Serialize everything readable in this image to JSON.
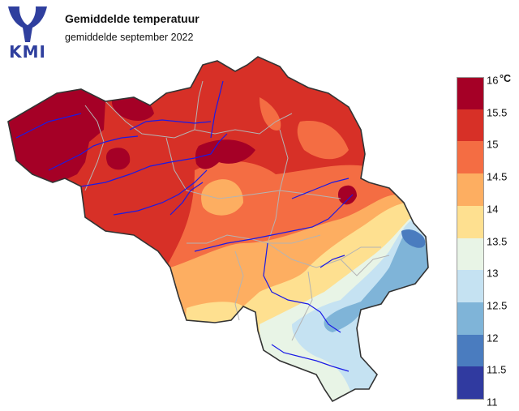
{
  "header": {
    "logo_text": "KMI",
    "title": "Gemiddelde temperatuur",
    "subtitle": "gemiddelde september 2022"
  },
  "legend": {
    "unit": "°C",
    "labels": [
      "16",
      "15.5",
      "15",
      "14.5",
      "14",
      "13.5",
      "13",
      "12.5",
      "12",
      "11.5",
      "11"
    ],
    "colors": [
      "#a50026",
      "#d73027",
      "#f46d43",
      "#fdae61",
      "#fee090",
      "#e8f4e6",
      "#c5e2f2",
      "#7fb4d8",
      "#4a7cbf",
      "#303aa0"
    ]
  },
  "map": {
    "region": "Belgium",
    "border_color": "#333333",
    "province_line_color": "#b4b4b4",
    "river_color": "#1a1ae6"
  }
}
